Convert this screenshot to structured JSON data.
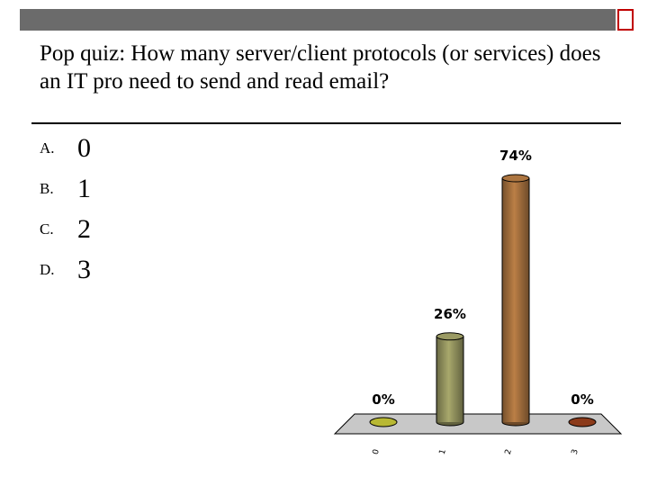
{
  "slide": {
    "title": "Pop quiz: How many server/client protocols (or services) does an IT pro need to send and read email?",
    "options": [
      {
        "letter": "A.",
        "text": "0"
      },
      {
        "letter": "B.",
        "text": "1"
      },
      {
        "letter": "C.",
        "text": "2"
      },
      {
        "letter": "D.",
        "text": "3"
      }
    ]
  },
  "chart_data": {
    "type": "bar",
    "categories": [
      "0",
      "1",
      "2",
      "3"
    ],
    "values": [
      0,
      26,
      74,
      0
    ],
    "data_labels": [
      "0%",
      "26%",
      "74%",
      "0%"
    ],
    "ylim": [
      0,
      74
    ],
    "colors": [
      "#b8b833",
      "#8c8c5a",
      "#9c6a3a",
      "#8b3a1a"
    ],
    "floor_color": "#c8c8c8"
  }
}
